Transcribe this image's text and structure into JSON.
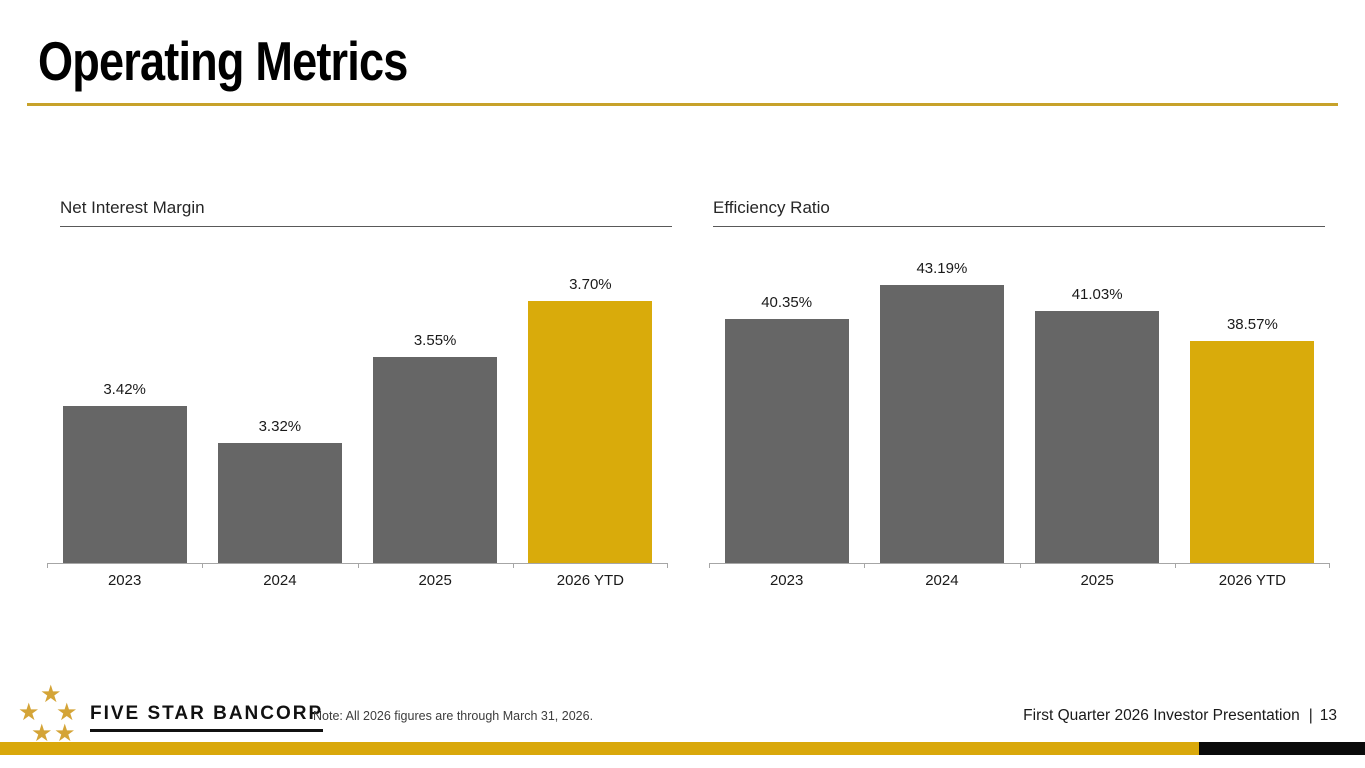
{
  "slide": {
    "title": "Operating Metrics",
    "footer": {
      "logo_text": "FIVE STAR BANCORP",
      "note": "Note: All 2026 figures are through March 31, 2026.",
      "right_text": "First Quarter 2026 Investor Presentation",
      "separator": "|",
      "page_number": "13"
    }
  },
  "colors": {
    "bar_gray": "#666666",
    "bar_gold": "#D9AB0B",
    "header_rule_gold": "#C7A22A",
    "stripe_gold": "#D9A80B",
    "stripe_black": "#0A0A0A",
    "star_gold": "#D4A437",
    "axis_gray": "#A6A6A6"
  },
  "chart_data": [
    {
      "type": "bar",
      "title": "Net Interest Margin",
      "categories": [
        "2023",
        "2024",
        "2025",
        "2026 YTD"
      ],
      "values": [
        3.42,
        3.32,
        3.55,
        3.7
      ],
      "labels": [
        "3.42%",
        "3.32%",
        "3.55%",
        "3.70%"
      ],
      "ylim": [
        3.0,
        3.8
      ],
      "bar_colors": [
        "#666666",
        "#666666",
        "#666666",
        "#D9AB0B"
      ],
      "highlight_index": 3,
      "legend": "none",
      "grid": false
    },
    {
      "type": "bar",
      "title": "Efficiency Ratio",
      "categories": [
        "2023",
        "2024",
        "2025",
        "2026 YTD"
      ],
      "values": [
        40.35,
        43.19,
        41.03,
        38.57
      ],
      "labels": [
        "40.35%",
        "43.19%",
        "41.03%",
        "38.57%"
      ],
      "ylim": [
        20,
        45
      ],
      "bar_colors": [
        "#666666",
        "#666666",
        "#666666",
        "#D9AB0B"
      ],
      "highlight_index": 3,
      "legend": "none",
      "grid": false
    }
  ]
}
